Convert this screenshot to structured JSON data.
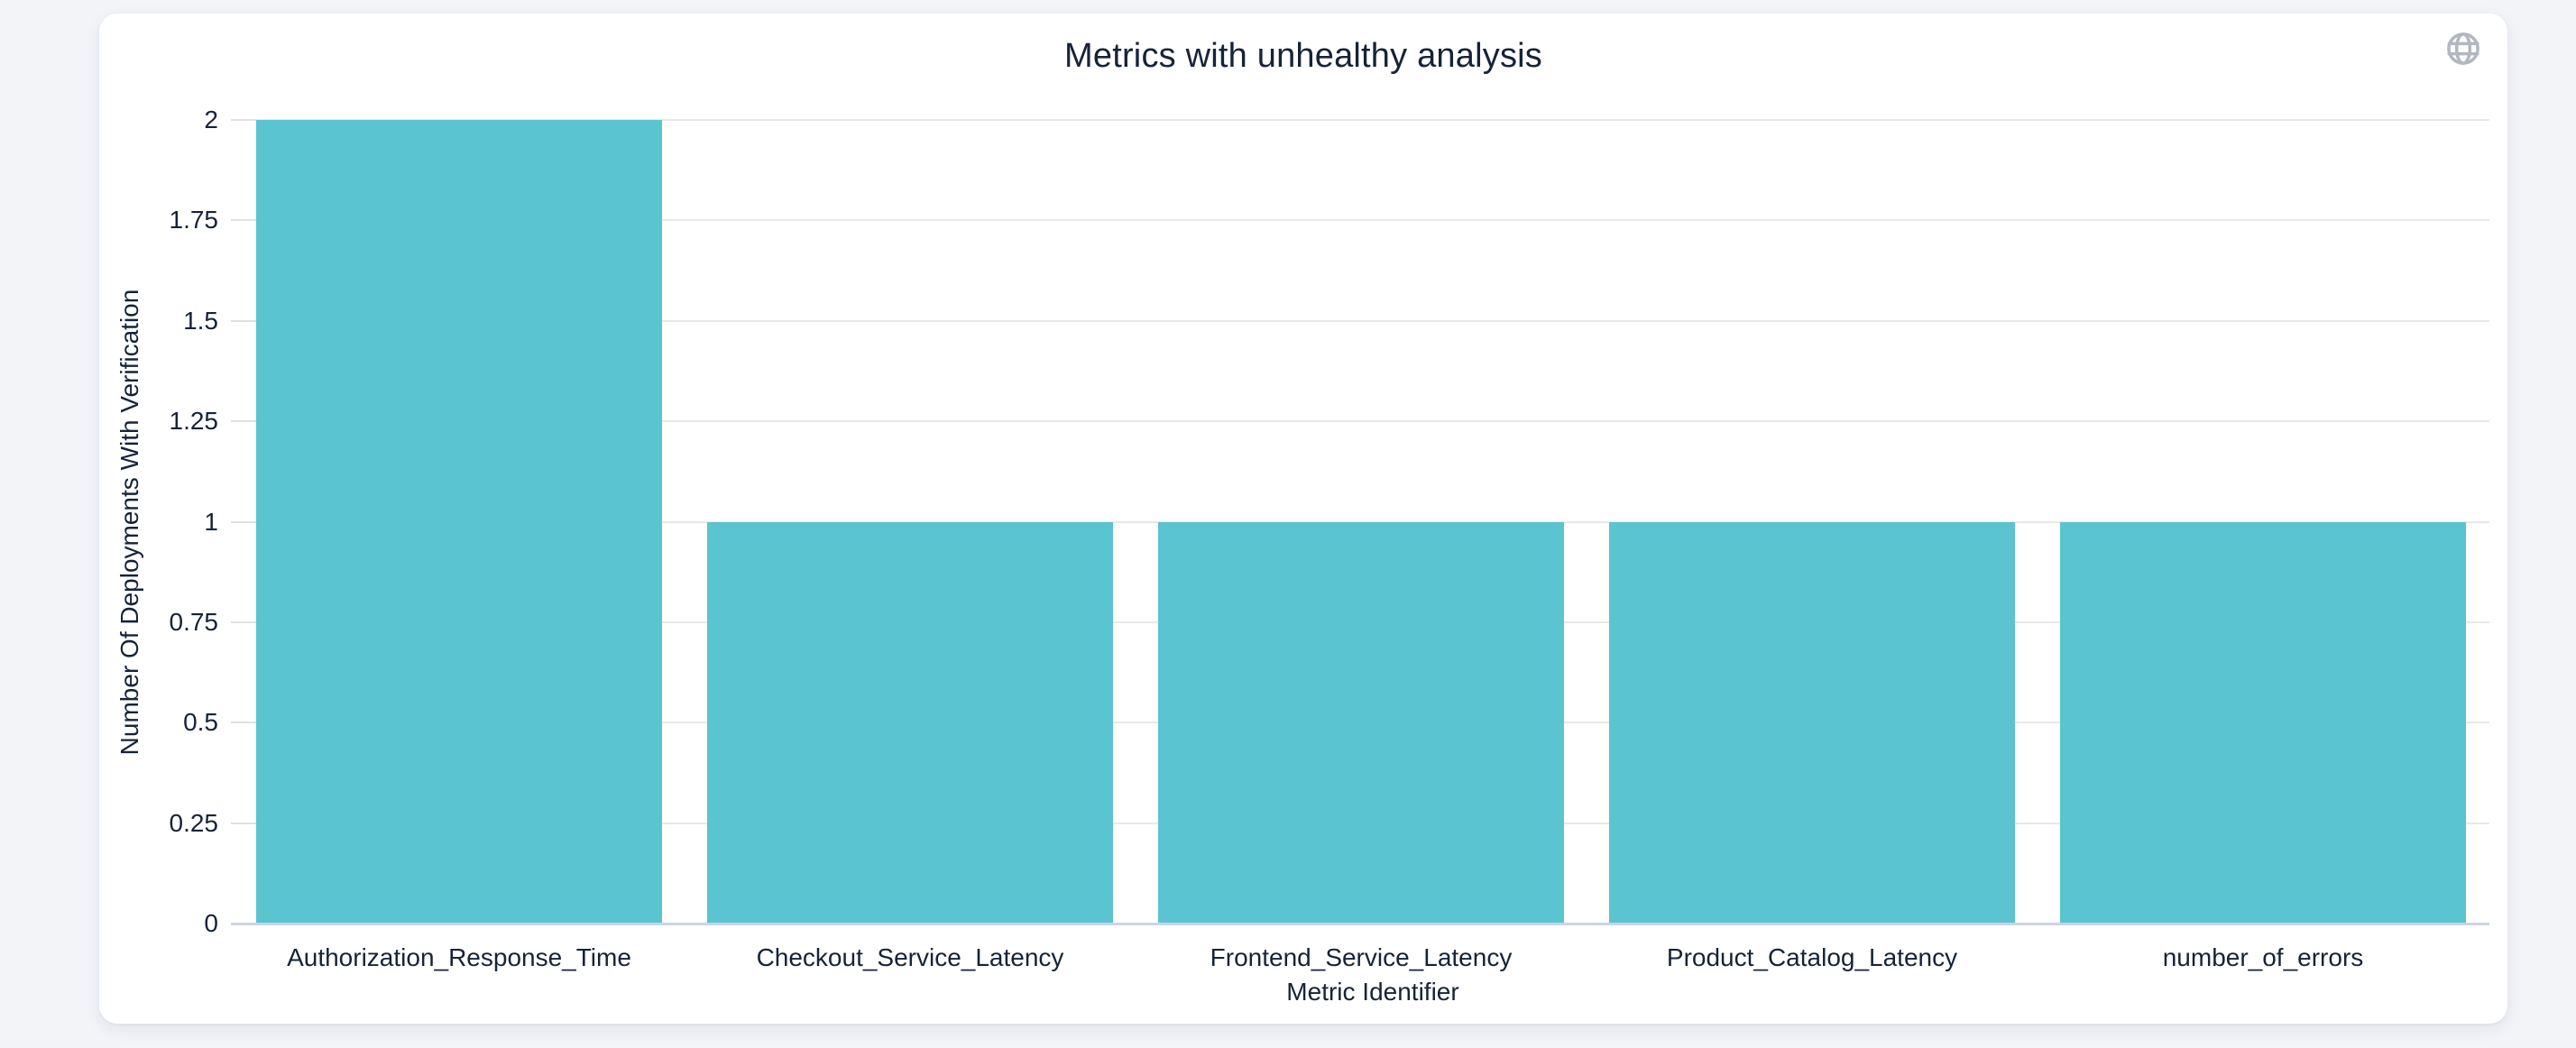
{
  "theme": {
    "page_bg": "#f2f4f8",
    "card_bg": "#ffffff",
    "text_color": "#162339",
    "grid_color": "#e8e8e8",
    "axis_line_color": "#ccd3e6",
    "tick_color": "#e0e0e0",
    "bar_color": "#5ac4d0",
    "icon_color": "#b2b7c1"
  },
  "icons": {
    "globe": "globe-icon"
  },
  "chart_data": {
    "type": "bar",
    "title": "Metrics with unhealthy analysis",
    "categories": [
      "Authorization_Response_Time",
      "Checkout_Service_Latency",
      "Frontend_Service_Latency",
      "Product_Catalog_Latency",
      "number_of_errors"
    ],
    "values": [
      2,
      1,
      1,
      1,
      1
    ],
    "xlabel": "Metric Identifier",
    "ylabel": "Number Of Deployments With Verification",
    "ylim": [
      0,
      2
    ],
    "yticks": [
      0,
      0.25,
      0.5,
      0.75,
      1,
      1.25,
      1.5,
      1.75,
      2
    ],
    "grid": true,
    "legend_position": "none",
    "bar_color": "#5ac4d0"
  }
}
